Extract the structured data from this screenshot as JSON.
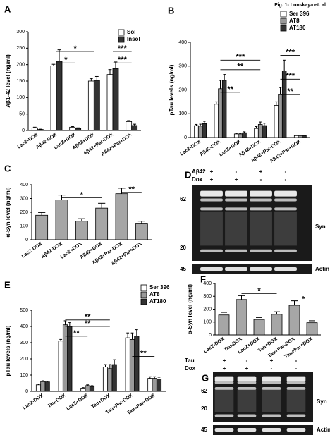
{
  "header": "Fig. 1- Lonskaya et. al",
  "chart_data": [
    {
      "type": "bar",
      "panel": "A",
      "y_label": "Aβ1-42 level (ng/ml)",
      "categories": [
        "LacZ-DOX",
        "Aβ42-DOX",
        "LacZ+DOX",
        "Aβ42+DOX",
        "Aβ42+Par-DOX",
        "Aβ42+Par+DOX"
      ],
      "series": [
        {
          "name": "Sol",
          "color": "#ffffff",
          "values": [
            8,
            196,
            10,
            150,
            170,
            27
          ],
          "errors": [
            2,
            5,
            2,
            8,
            15,
            3
          ]
        },
        {
          "name": "Insol",
          "color": "#333333",
          "values": [
            3,
            210,
            6,
            152,
            188,
            15
          ],
          "errors": [
            1,
            35,
            2,
            12,
            20,
            4
          ]
        }
      ],
      "ylim": [
        0,
        300
      ],
      "yticks": [
        0,
        50,
        100,
        150,
        200,
        250,
        300
      ],
      "annotations": [
        {
          "text": "*",
          "from": "Aβ42-DOX",
          "to": "Aβ42+DOX",
          "y": 240
        },
        {
          "text": "*",
          "from": "Aβ42-DOX",
          "to": "LacZ+DOX",
          "y": 205
        },
        {
          "text": "***",
          "from": "Aβ42+Par-DOX",
          "to": "Aβ42+Par+DOX",
          "y": 240
        },
        {
          "text": "***",
          "from": "Aβ42+Par-DOX",
          "to": "Aβ42+Par+DOX",
          "y": 205
        }
      ]
    },
    {
      "type": "bar",
      "panel": "B",
      "y_label": "pTau levels (ng/ml)",
      "categories": [
        "LacZ-DOX",
        "Aβ42-DOX",
        "LacZ+DOX",
        "Aβ42+DOX",
        "Aβ42+Par-DOX",
        "Aβ42+Par+DOX"
      ],
      "series": [
        {
          "name": "Ser 396",
          "color": "#ffffff",
          "values": [
            50,
            140,
            15,
            38,
            135,
            8
          ],
          "errors": [
            5,
            10,
            3,
            8,
            15,
            2
          ]
        },
        {
          "name": "AT8",
          "color": "#999999",
          "values": [
            48,
            205,
            15,
            55,
            180,
            8
          ],
          "errors": [
            8,
            35,
            3,
            10,
            30,
            2
          ]
        },
        {
          "name": "AT180",
          "color": "#333333",
          "values": [
            58,
            240,
            20,
            50,
            280,
            8
          ],
          "errors": [
            10,
            25,
            4,
            10,
            45,
            2
          ]
        }
      ],
      "ylim": [
        0,
        400
      ],
      "yticks": [
        0,
        100,
        200,
        300,
        400
      ],
      "annotations": [
        {
          "text": "***",
          "from": "Aβ42-DOX",
          "to": "Aβ42+DOX",
          "y": 325
        },
        {
          "text": "**",
          "from": "Aβ42-DOX",
          "to": "Aβ42+DOX",
          "y": 285
        },
        {
          "text": "**",
          "from": "Aβ42-DOX",
          "to": "LacZ+DOX",
          "y": 190
        },
        {
          "text": "***",
          "from": "Aβ42+Par-DOX",
          "to": "Aβ42+Par+DOX",
          "y": 345
        },
        {
          "text": "***",
          "from": "Aβ42+Par-DOX",
          "to": "Aβ42+Par+DOX",
          "y": 245
        },
        {
          "text": "**",
          "from": "Aβ42+Par-DOX",
          "to": "Aβ42+Par+DOX",
          "y": 180
        }
      ]
    },
    {
      "type": "bar",
      "panel": "C",
      "y_label": "α-Syn level (ng/ml)",
      "categories": [
        "LacZ-DOX",
        "Aβ42-DOX",
        "LacZ+DOX",
        "Aβ42+DOX",
        "Aβ42+Par-DOX",
        "Aβ42+Par+DOX"
      ],
      "color": "#a6a6a6",
      "values": [
        178,
        290,
        135,
        230,
        335,
        120
      ],
      "errors": [
        20,
        35,
        18,
        35,
        40,
        15
      ],
      "ylim": [
        0,
        400
      ],
      "yticks": [
        0,
        100,
        200,
        300,
        400
      ],
      "annotations": [
        {
          "text": "*",
          "from": "Aβ42-DOX",
          "to": "Aβ42+DOX",
          "y": 305
        },
        {
          "text": "**",
          "from": "Aβ42+Par-DOX",
          "to": "Aβ42+Par+DOX",
          "y": 345
        }
      ]
    },
    {
      "type": "bar",
      "panel": "E",
      "y_label": "pTau levels (ng/ml)",
      "categories": [
        "LacZ-DOX",
        "Tau-DOX",
        "LacZ+DOX",
        "Tau+DOX",
        "Tau+Par-DOX",
        "Tau+Par+DOX"
      ],
      "series": [
        {
          "name": "Ser 396",
          "color": "#ffffff",
          "values": [
            40,
            310,
            20,
            150,
            330,
            80
          ],
          "errors": [
            5,
            10,
            3,
            15,
            30,
            10
          ]
        },
        {
          "name": "AT8",
          "color": "#999999",
          "values": [
            60,
            410,
            35,
            140,
            320,
            80
          ],
          "errors": [
            5,
            25,
            5,
            25,
            40,
            10
          ]
        },
        {
          "name": "AT180",
          "color": "#333333",
          "values": [
            58,
            400,
            30,
            165,
            340,
            75
          ],
          "errors": [
            5,
            25,
            5,
            30,
            40,
            12
          ]
        }
      ],
      "ylim": [
        0,
        500
      ],
      "yticks": [
        0,
        100,
        200,
        300,
        400,
        500
      ],
      "annotations": [
        {
          "text": "**",
          "from": "Tau-DOX",
          "to": "Tau+DOX",
          "y": 440
        },
        {
          "text": "**",
          "from": "Tau-DOX",
          "to": "Tau+DOX",
          "y": 400
        },
        {
          "text": "**",
          "from": "Tau-DOX",
          "to": "LacZ+DOX",
          "y": 340
        },
        {
          "text": "**",
          "from": "Tau+Par-DOX",
          "to": "Tau+Par+DOX",
          "y": 215
        }
      ]
    },
    {
      "type": "bar",
      "panel": "F",
      "y_label": "α-Syn level (ng/ml)",
      "categories": [
        "LacZ-DOX",
        "Tau-DOX",
        "LacZ+DOX",
        "Tau+DOX",
        "Tau+Par-DOX",
        "Tau+Par+DOX"
      ],
      "color": "#a6a6a6",
      "values": [
        155,
        275,
        120,
        160,
        230,
        95
      ],
      "errors": [
        20,
        30,
        15,
        20,
        35,
        15
      ],
      "ylim": [
        0,
        400
      ],
      "yticks": [
        0,
        100,
        200,
        300,
        400
      ],
      "annotations": [
        {
          "text": "*",
          "from": "Tau-DOX",
          "to": "Tau+DOX",
          "y": 320
        },
        {
          "text": "*",
          "from": "Tau+Par-DOX",
          "to": "Tau+Par+DOX",
          "y": 255
        }
      ]
    }
  ],
  "gels": [
    {
      "panel": "D",
      "conditions": [
        {
          "label": "Aβ42",
          "marks": [
            "+",
            "-",
            "+",
            "-"
          ]
        },
        {
          "label": "Dox",
          "marks": [
            "+",
            "+",
            "-",
            "-"
          ]
        }
      ],
      "markers": [
        "62",
        "20",
        "45"
      ],
      "bands": [
        "Syn",
        "Actin"
      ]
    },
    {
      "panel": "G",
      "conditions": [
        {
          "label": "Tau",
          "marks": [
            "+",
            "-",
            "+",
            "-"
          ]
        },
        {
          "label": "Dox",
          "marks": [
            "+",
            "+",
            "-",
            "-"
          ]
        }
      ],
      "markers": [
        "62",
        "20",
        "45"
      ],
      "bands": [
        "Syn",
        "Actin"
      ]
    }
  ]
}
